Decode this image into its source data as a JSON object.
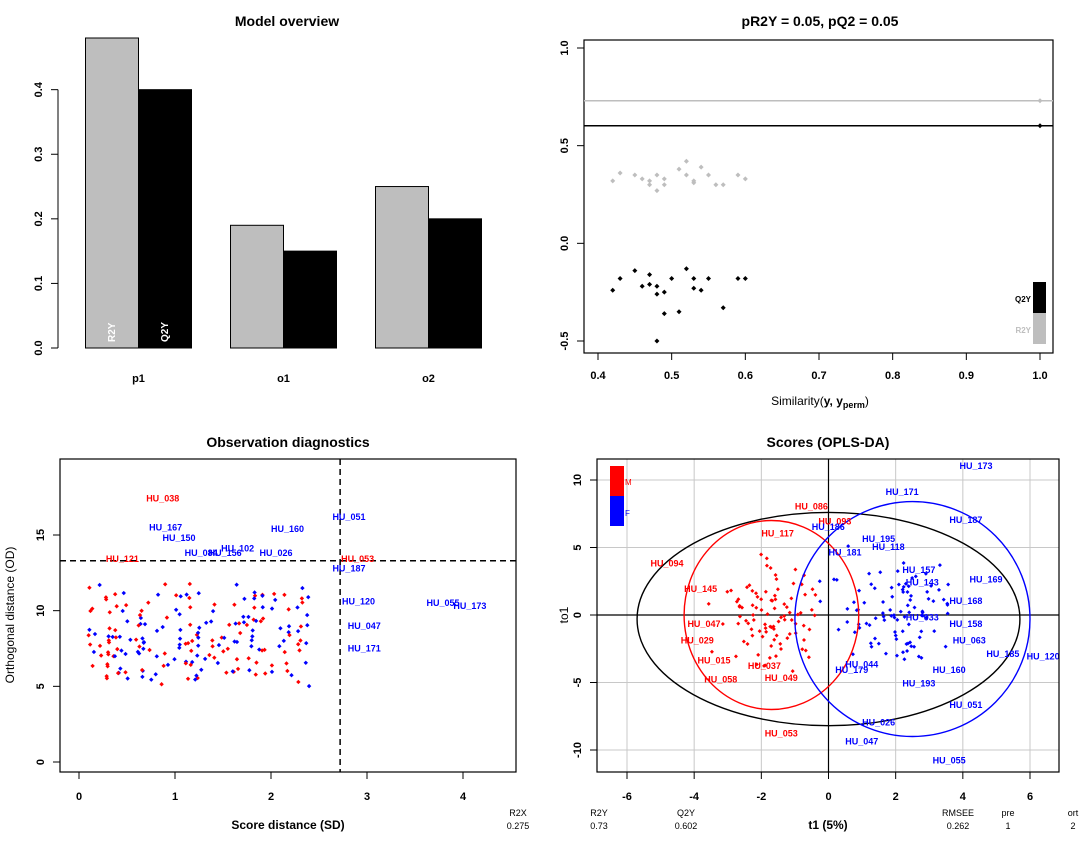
{
  "colors": {
    "R2Y": "#bebebe",
    "Q2Y": "#000000",
    "M": "#ff0000",
    "F": "#0000ff"
  },
  "chart_data": [
    {
      "id": "overview",
      "type": "bar",
      "title": "Model overview",
      "categories": [
        "p1",
        "o1",
        "o2"
      ],
      "series": [
        {
          "name": "R2Y",
          "values": [
            0.48,
            0.19,
            0.25
          ]
        },
        {
          "name": "Q2Y",
          "values": [
            0.4,
            0.15,
            0.2
          ]
        }
      ],
      "yticks": [
        "0.0",
        "0.1",
        "0.2",
        "0.3",
        "0.4"
      ],
      "ylim": [
        0,
        0.48
      ]
    },
    {
      "id": "permutation",
      "type": "scatter",
      "title": "pR2Y = 0.05, pQ2 = 0.05",
      "xlabel_main": "Similarity(",
      "xlabel_y": "y",
      "xlabel_comma": ", y",
      "xlabel_sub": "perm",
      "xlabel_close": ")",
      "xlim": [
        0.4,
        1.0
      ],
      "ylim": [
        -0.5,
        1.0
      ],
      "xticks": [
        "0.4",
        "0.5",
        "0.6",
        "0.7",
        "0.8",
        "0.9",
        "1.0"
      ],
      "yticks": [
        "-0.5",
        "0.0",
        "0.5",
        "1.0"
      ],
      "legend": [
        "Q2Y",
        "R2Y"
      ],
      "r2y_model": 0.73,
      "q2y_model": 0.602,
      "r2y_perm": [
        [
          0.42,
          0.32
        ],
        [
          0.43,
          0.36
        ],
        [
          0.45,
          0.35
        ],
        [
          0.46,
          0.33
        ],
        [
          0.47,
          0.32
        ],
        [
          0.47,
          0.3
        ],
        [
          0.48,
          0.27
        ],
        [
          0.48,
          0.35
        ],
        [
          0.49,
          0.3
        ],
        [
          0.49,
          0.33
        ],
        [
          0.51,
          0.38
        ],
        [
          0.52,
          0.35
        ],
        [
          0.52,
          0.42
        ],
        [
          0.53,
          0.32
        ],
        [
          0.53,
          0.31
        ],
        [
          0.54,
          0.39
        ],
        [
          0.55,
          0.35
        ],
        [
          0.56,
          0.3
        ],
        [
          0.57,
          0.3
        ],
        [
          0.59,
          0.35
        ],
        [
          0.6,
          0.33
        ]
      ],
      "q2y_perm": [
        [
          0.42,
          -0.24
        ],
        [
          0.43,
          -0.18
        ],
        [
          0.45,
          -0.14
        ],
        [
          0.46,
          -0.22
        ],
        [
          0.47,
          -0.16
        ],
        [
          0.47,
          -0.21
        ],
        [
          0.48,
          -0.22
        ],
        [
          0.48,
          -0.26
        ],
        [
          0.49,
          -0.36
        ],
        [
          0.49,
          -0.25
        ],
        [
          0.48,
          -0.5
        ],
        [
          0.5,
          -0.18
        ],
        [
          0.51,
          -0.35
        ],
        [
          0.52,
          -0.13
        ],
        [
          0.53,
          -0.18
        ],
        [
          0.53,
          -0.23
        ],
        [
          0.54,
          -0.24
        ],
        [
          0.55,
          -0.18
        ],
        [
          0.57,
          -0.33
        ],
        [
          0.59,
          -0.18
        ],
        [
          0.6,
          -0.18
        ]
      ]
    },
    {
      "id": "diagnostics",
      "type": "scatter",
      "title": "Observation diagnostics",
      "xlabel": "Score distance (SD)",
      "ylabel": "Orthogonal distance (OD)",
      "xlim": [
        -0.18,
        4.55
      ],
      "ylim": [
        -0.5,
        19.8
      ],
      "xticks": [
        "0",
        "1",
        "2",
        "3",
        "4"
      ],
      "yticks": [
        "0",
        "5",
        "10",
        "15"
      ],
      "sd_cutoff": 2.72,
      "od_cutoff": 13.3,
      "labeled": [
        {
          "label": "HU_038",
          "x": 0.7,
          "y": 17.2,
          "g": "M"
        },
        {
          "label": "HU_167",
          "x": 0.73,
          "y": 15.3,
          "g": "F"
        },
        {
          "label": "HU_150",
          "x": 0.87,
          "y": 14.6,
          "g": "F"
        },
        {
          "label": "HU_102",
          "x": 1.48,
          "y": 13.9,
          "g": "F"
        },
        {
          "label": "HU_084",
          "x": 1.1,
          "y": 13.6,
          "g": "F"
        },
        {
          "label": "HU_156",
          "x": 1.35,
          "y": 13.6,
          "g": "F"
        },
        {
          "label": "HU_026",
          "x": 1.88,
          "y": 13.6,
          "g": "F"
        },
        {
          "label": "HU_160",
          "x": 2.0,
          "y": 15.2,
          "g": "F"
        },
        {
          "label": "HU_051",
          "x": 2.64,
          "y": 16.0,
          "g": "F"
        },
        {
          "label": "HU_121",
          "x": 0.28,
          "y": 13.2,
          "g": "M"
        },
        {
          "label": "HU_053",
          "x": 2.73,
          "y": 13.2,
          "g": "M"
        },
        {
          "label": "HU_187",
          "x": 2.64,
          "y": 12.6,
          "g": "F"
        },
        {
          "label": "HU_120",
          "x": 2.74,
          "y": 10.4,
          "g": "F"
        },
        {
          "label": "HU_055",
          "x": 3.62,
          "y": 10.3,
          "g": "F"
        },
        {
          "label": "HU_173",
          "x": 3.9,
          "y": 10.1,
          "g": "F"
        },
        {
          "label": "HU_047",
          "x": 2.8,
          "y": 8.8,
          "g": "F"
        },
        {
          "label": "HU_171",
          "x": 2.8,
          "y": 7.3,
          "g": "F"
        }
      ],
      "bottom_stats": [
        {
          "label": "R2X",
          "value": "0.275"
        }
      ]
    },
    {
      "id": "scores",
      "type": "scatter",
      "title": "Scores (OPLS-DA)",
      "xlabel": "t1 (5%)",
      "ylabel": "to1",
      "xlim": [
        -7,
        7.3
      ],
      "ylim": [
        -12.3,
        11.8
      ],
      "xticks": [
        "-6",
        "-4",
        "-2",
        "0",
        "2",
        "4",
        "6"
      ],
      "yticks": [
        "-10",
        "-5",
        "0",
        "5",
        "10"
      ],
      "legend": [
        "M",
        "F"
      ],
      "ellipses": [
        {
          "g": "all",
          "cx": 0.0,
          "cy": -0.3,
          "rx": 5.7,
          "ry": 7.9
        },
        {
          "g": "M",
          "cx": -1.7,
          "cy": 0.0,
          "rx": 2.6,
          "ry": 7.0
        },
        {
          "g": "F",
          "cx": 2.5,
          "cy": -0.3,
          "rx": 3.5,
          "ry": 8.7
        }
      ],
      "labeled": [
        {
          "label": "HU_173",
          "x": 3.9,
          "y": 10.8,
          "g": "F"
        },
        {
          "label": "HU_171",
          "x": 1.7,
          "y": 8.9,
          "g": "F"
        },
        {
          "label": "HU_187",
          "x": 3.6,
          "y": 6.8,
          "g": "F"
        },
        {
          "label": "HU_086",
          "x": -1.0,
          "y": 7.8,
          "g": "M"
        },
        {
          "label": "HU_093",
          "x": -0.3,
          "y": 6.7,
          "g": "M"
        },
        {
          "label": "HU_186",
          "x": -0.5,
          "y": 6.3,
          "g": "F"
        },
        {
          "label": "HU_195",
          "x": 1.0,
          "y": 5.4,
          "g": "F"
        },
        {
          "label": "HU_118",
          "x": 1.3,
          "y": 4.8,
          "g": "F"
        },
        {
          "label": "HU_181",
          "x": 0.0,
          "y": 4.4,
          "g": "F"
        },
        {
          "label": "HU_094",
          "x": -5.3,
          "y": 3.6,
          "g": "M"
        },
        {
          "label": "HU_117",
          "x": -2.0,
          "y": 5.8,
          "g": "M"
        },
        {
          "label": "HU_157",
          "x": 2.2,
          "y": 3.1,
          "g": "F"
        },
        {
          "label": "HU_143",
          "x": 2.3,
          "y": 2.2,
          "g": "F"
        },
        {
          "label": "HU_169",
          "x": 4.2,
          "y": 2.4,
          "g": "F"
        },
        {
          "label": "HU_145",
          "x": -4.3,
          "y": 1.7,
          "g": "M"
        },
        {
          "label": "HU_168",
          "x": 3.6,
          "y": 0.8,
          "g": "F"
        },
        {
          "label": "HU_033",
          "x": 2.3,
          "y": -0.4,
          "g": "F"
        },
        {
          "label": "HU_158",
          "x": 3.6,
          "y": -0.9,
          "g": "F"
        },
        {
          "label": "HU_047",
          "x": -4.2,
          "y": -0.9,
          "g": "M"
        },
        {
          "label": "HU_029",
          "x": -4.4,
          "y": -2.1,
          "g": "M"
        },
        {
          "label": "HU_063",
          "x": 3.7,
          "y": -2.1,
          "g": "F"
        },
        {
          "label": "HU_185",
          "x": 4.7,
          "y": -3.1,
          "g": "F"
        },
        {
          "label": "HU_120",
          "x": 5.9,
          "y": -3.3,
          "g": "F"
        },
        {
          "label": "HU_015",
          "x": -3.9,
          "y": -3.6,
          "g": "M"
        },
        {
          "label": "HU_044",
          "x": 0.5,
          "y": -3.9,
          "g": "F"
        },
        {
          "label": "HU_179",
          "x": 0.2,
          "y": -4.3,
          "g": "F"
        },
        {
          "label": "HU_160",
          "x": 3.1,
          "y": -4.3,
          "g": "F"
        },
        {
          "label": "HU_037",
          "x": -2.4,
          "y": -4.0,
          "g": "M"
        },
        {
          "label": "HU_058",
          "x": -3.7,
          "y": -5.0,
          "g": "M"
        },
        {
          "label": "HU_049",
          "x": -1.9,
          "y": -4.9,
          "g": "M"
        },
        {
          "label": "HU_193",
          "x": 2.2,
          "y": -5.3,
          "g": "F"
        },
        {
          "label": "HU_051",
          "x": 3.6,
          "y": -6.9,
          "g": "F"
        },
        {
          "label": "HU_026",
          "x": 1.0,
          "y": -8.2,
          "g": "F"
        },
        {
          "label": "HU_053",
          "x": -1.9,
          "y": -9.0,
          "g": "M"
        },
        {
          "label": "HU_047",
          "x": 0.5,
          "y": -9.6,
          "g": "F"
        },
        {
          "label": "HU_055",
          "x": 3.1,
          "y": -11.0,
          "g": "F"
        }
      ],
      "bottom_stats": [
        {
          "label": "R2Y",
          "value": "0.73"
        },
        {
          "label": "Q2Y",
          "value": "0.602"
        },
        {
          "label": "RMSEE",
          "value": "0.262"
        },
        {
          "label": "pre",
          "value": "1"
        },
        {
          "label": "ort",
          "value": "2"
        }
      ]
    }
  ]
}
